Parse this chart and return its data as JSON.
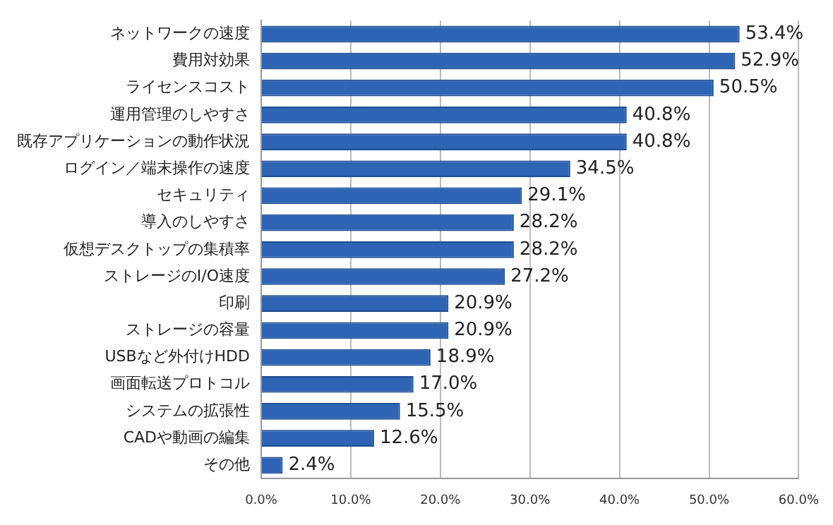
{
  "chart_data": {
    "type": "bar",
    "orientation": "horizontal",
    "categories": [
      "ネットワークの速度",
      "費用対効果",
      "ライセンスコスト",
      "運用管理のしやすさ",
      "既存アプリケーションの動作状況",
      "ログイン／端末操作の速度",
      "セキュリティ",
      "導入のしやすさ",
      "仮想デスクトップの集積率",
      "ストレージのI/O速度",
      "印刷",
      "ストレージの容量",
      "USBなど外付けHDD",
      "画面転送プロトコル",
      "システムの拡張性",
      "CADや動画の編集",
      "その他"
    ],
    "values": [
      53.4,
      52.9,
      50.5,
      40.8,
      40.8,
      34.5,
      29.1,
      28.2,
      28.2,
      27.2,
      20.9,
      20.9,
      18.9,
      17.0,
      15.5,
      12.6,
      2.4
    ],
    "value_labels": [
      "53.4%",
      "52.9%",
      "50.5%",
      "40.8%",
      "40.8%",
      "34.5%",
      "29.1%",
      "28.2%",
      "28.2%",
      "27.2%",
      "20.9%",
      "20.9%",
      "18.9%",
      "17.0%",
      "15.5%",
      "12.6%",
      "2.4%"
    ],
    "color": "#2e64b4",
    "xlim": [
      0,
      60
    ],
    "xticks": [
      {
        "value": 0,
        "label": "0.0%"
      },
      {
        "value": 10,
        "label": "10.0%"
      },
      {
        "value": 20,
        "label": "20.0%"
      },
      {
        "value": 30,
        "label": "30.0%"
      },
      {
        "value": 40,
        "label": "40.0%"
      },
      {
        "value": 50,
        "label": "50.0%"
      },
      {
        "value": 60,
        "label": "60.0%"
      }
    ],
    "grid": "x",
    "legend": false
  }
}
